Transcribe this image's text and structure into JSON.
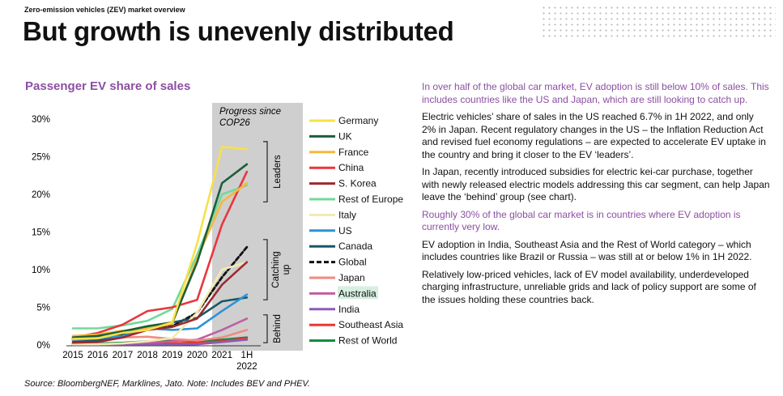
{
  "header": {
    "kicker": "Zero-emission vehicles (ZEV) market overview",
    "title": "But growth is unevenly distributed"
  },
  "chart_title": "Passenger EV share of sales",
  "chart_data": {
    "type": "line",
    "title": "Passenger EV share of sales",
    "x": [
      "2015",
      "2016",
      "2017",
      "2018",
      "2019",
      "2020",
      "2021",
      "1H 2022"
    ],
    "ylim": [
      0,
      30
    ],
    "yticks": [
      "0%",
      "5%",
      "10%",
      "15%",
      "20%",
      "25%",
      "30%"
    ],
    "grid": false,
    "legend_position": "right",
    "highlight": {
      "label": "Progress since COP26",
      "x_range": [
        "2021",
        "1H 2022"
      ]
    },
    "groups": [
      {
        "label": "Leaders",
        "ymin": 19,
        "ymax": 27
      },
      {
        "label": "Catching up",
        "ymin": 6,
        "ymax": 14
      },
      {
        "label": "Behind",
        "ymin": 0.3,
        "ymax": 4
      }
    ],
    "series": [
      {
        "name": "Germany",
        "color": "#f7e14a",
        "values": [
          0.8,
          0.9,
          1.6,
          2.0,
          3.0,
          13.5,
          26.3,
          26.0
        ]
      },
      {
        "name": "UK",
        "color": "#1c5e3a",
        "values": [
          1.0,
          1.2,
          1.8,
          2.5,
          3.0,
          11.0,
          21.5,
          24.0
        ]
      },
      {
        "name": "France",
        "color": "#f5b83b",
        "values": [
          1.2,
          1.4,
          1.9,
          2.2,
          2.8,
          11.5,
          19.0,
          21.5
        ]
      },
      {
        "name": "China",
        "color": "#e8373e",
        "values": [
          1.0,
          1.6,
          2.7,
          4.5,
          5.0,
          6.0,
          16.0,
          23.0
        ]
      },
      {
        "name": "S. Korea",
        "color": "#9c2a2f",
        "values": [
          0.3,
          0.4,
          1.0,
          2.0,
          2.4,
          3.5,
          8.0,
          11.0
        ]
      },
      {
        "name": "Rest of Europe",
        "color": "#73d99a",
        "values": [
          2.2,
          2.2,
          2.6,
          3.2,
          4.8,
          12.0,
          20.0,
          21.2
        ]
      },
      {
        "name": "Italy",
        "color": "#f2eab0",
        "values": [
          0.1,
          0.1,
          0.2,
          0.5,
          0.9,
          4.3,
          10.0,
          11.0
        ]
      },
      {
        "name": "US",
        "color": "#2b93d6",
        "values": [
          0.7,
          0.9,
          1.2,
          2.2,
          2.0,
          2.2,
          4.5,
          6.7
        ]
      },
      {
        "name": "Canada",
        "color": "#16576b",
        "values": [
          0.4,
          0.6,
          1.0,
          2.3,
          3.0,
          3.6,
          5.8,
          6.3
        ]
      },
      {
        "name": "Global",
        "color": "#111111",
        "dashed": true,
        "values": [
          0.8,
          1.0,
          1.4,
          2.4,
          2.5,
          4.3,
          9.0,
          13.0
        ]
      },
      {
        "name": "Japan",
        "color": "#f28a80",
        "values": [
          0.6,
          0.6,
          1.0,
          1.1,
          0.8,
          0.6,
          1.0,
          2.0
        ]
      },
      {
        "name": "Australia",
        "color": "#bf5fa2",
        "values": [
          0.1,
          0.1,
          0.2,
          0.3,
          0.5,
          0.7,
          2.0,
          3.5
        ]
      },
      {
        "name": "India",
        "color": "#8d5ab5",
        "values": [
          0.0,
          0.0,
          0.05,
          0.05,
          0.05,
          0.1,
          0.4,
          0.7
        ]
      },
      {
        "name": "Southeast Asia",
        "color": "#e53935",
        "values": [
          0.1,
          0.1,
          0.1,
          0.2,
          0.2,
          0.3,
          0.5,
          0.9
        ]
      },
      {
        "name": "Rest of World",
        "color": "#0a8a3a",
        "values": [
          0.2,
          0.2,
          0.3,
          0.5,
          0.6,
          0.5,
          0.7,
          1.0
        ]
      }
    ]
  },
  "text": {
    "p1": "In over half of the global car market, EV adoption is still below 10% of sales. This includes countries like the US and Japan, which are still looking to catch up.",
    "p2": "Electric vehicles’ share of sales in the US reached 6.7% in 1H 2022, and only 2% in Japan. Recent regulatory changes in the US – the Inflation Reduction Act and revised fuel economy regulations – are expected to accelerate EV uptake in the country and bring it closer to the EV ‘leaders’.",
    "p3": "In Japan, recently introduced subsidies for electric kei-car purchase, together with newly released electric models addressing this car segment, can help Japan leave the ‘behind’ group (see chart).",
    "p4": "Roughly 30% of the global car market is in countries where EV adoption is currently very low.",
    "p5": "EV adoption in India, Southeast Asia and the Rest of World category – which includes countries like Brazil or Russia – was still at or below 1% in 1H 2022.",
    "p6": "Relatively low-priced vehicles, lack of EV model availability, underdeveloped charging infrastructure, unreliable grids and lack of policy support are some of the issues holding these countries back."
  },
  "source": "Source: BloombergNEF, Marklines, Jato. Note: Includes BEV and PHEV.",
  "colors": {
    "accent": "#8c4fa3",
    "highlight_band": "#cfcfcf",
    "australia_label_bg": "#d7efe0"
  }
}
